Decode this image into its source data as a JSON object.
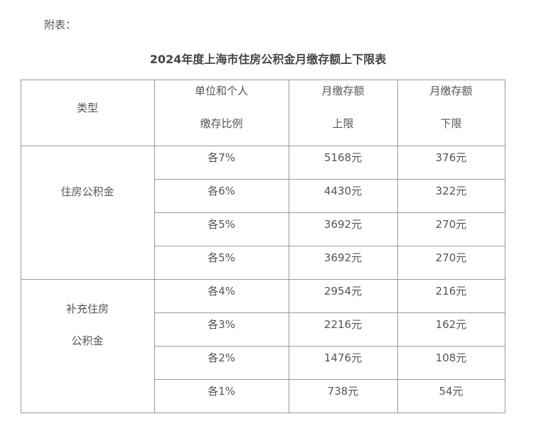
{
  "label": "附表：",
  "title": "2024年度上海市住房公积金月缴存额上下限表",
  "headers": {
    "type": "类型",
    "ratio_1": "单位和个人",
    "ratio_2": "缴存比例",
    "upper_1": "月缴存额",
    "upper_2": "上限",
    "lower_1": "月缴存额",
    "lower_2": "下限"
  },
  "groups": [
    {
      "type_1": "住房公积金",
      "rows": [
        {
          "ratio": "各7%",
          "upper": "5168元",
          "lower": "376元"
        },
        {
          "ratio": "各6%",
          "upper": "4430元",
          "lower": "322元"
        },
        {
          "ratio": "各5%",
          "upper": "3692元",
          "lower": "270元"
        }
      ]
    },
    {
      "type_1": "补充住房",
      "type_2": "公积金",
      "rows": [
        {
          "ratio": "各5%",
          "upper": "3692元",
          "lower": "270元"
        },
        {
          "ratio": "各4%",
          "upper": "2954元",
          "lower": "216元"
        },
        {
          "ratio": "各3%",
          "upper": "2216元",
          "lower": "162元"
        },
        {
          "ratio": "各2%",
          "upper": "1476元",
          "lower": "108元"
        },
        {
          "ratio": "各1%",
          "upper": "738元",
          "lower": "54元"
        }
      ]
    }
  ]
}
